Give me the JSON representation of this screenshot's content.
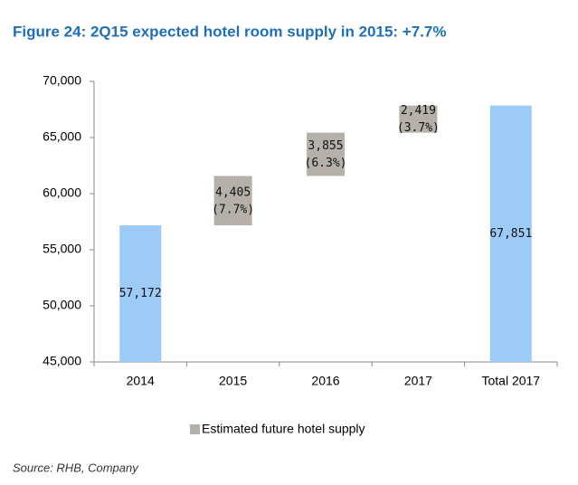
{
  "chart_data": {
    "type": "waterfall",
    "title": "Figure 24:  2Q15 expected hotel room supply in 2015: +7.7%",
    "categories": [
      "2014",
      "2015",
      "2016",
      "2017",
      "Total 2017"
    ],
    "values": [
      57172,
      4405,
      3855,
      2419,
      67851
    ],
    "value_labels": [
      "57,172",
      "4,405",
      "3,855",
      "2,419",
      "67,851"
    ],
    "percent_labels": [
      null,
      "(7.7%)",
      "(6.3%)",
      "(3.7%)",
      null
    ],
    "bar_kinds": [
      "total",
      "increase",
      "increase",
      "increase",
      "total"
    ],
    "total_color": "#9ccbf7",
    "legend": {
      "name": "Estimated future hotel supply",
      "color": "#b5b0aa"
    },
    "ylim": [
      45000,
      70000
    ],
    "yticks": [
      {
        "value": 45000,
        "label": "45,000"
      },
      {
        "value": 50000,
        "label": "50,000"
      },
      {
        "value": 55000,
        "label": "55,000"
      },
      {
        "value": 60000,
        "label": "60,000"
      },
      {
        "value": 65000,
        "label": "65,000"
      },
      {
        "value": 70000,
        "label": "70,000"
      }
    ],
    "source": "Source: RHB, Company"
  }
}
